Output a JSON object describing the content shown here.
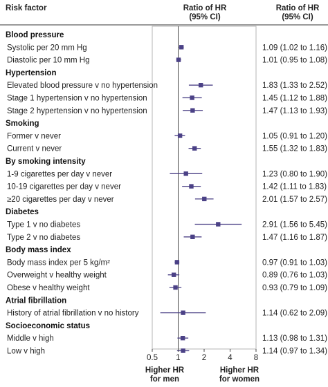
{
  "chart_data": {
    "type": "forest",
    "header": {
      "risk_factor": "Risk factor",
      "plot_title": [
        "Ratio of HR",
        "(95% CI)"
      ],
      "value_title": [
        "Ratio of HR",
        "(95% CI)"
      ]
    },
    "xscale": "log",
    "xlim": [
      0.5,
      8
    ],
    "xticks": [
      "0.5",
      "1",
      "2",
      "4",
      "8"
    ],
    "x_tick_values": [
      0.5,
      1,
      2,
      4,
      8
    ],
    "reference_line": 1,
    "xlabel_left": [
      "Higher HR",
      "for men"
    ],
    "xlabel_right": [
      "Higher HR",
      "for women"
    ],
    "marker_color": "#4b4186",
    "groups": [
      {
        "title": "Blood pressure",
        "items": [
          {
            "label": "Systolic per 20 mm Hg",
            "est": 1.09,
            "lo": 1.02,
            "hi": 1.16,
            "text": "1.09 (1.02 to 1.16)"
          },
          {
            "label": "Diastolic per 10 mm Hg",
            "est": 1.01,
            "lo": 0.95,
            "hi": 1.08,
            "text": "1.01 (0.95 to 1.08)"
          }
        ]
      },
      {
        "title": "Hypertension",
        "items": [
          {
            "label": "Elevated blood pressure v no hypertension",
            "est": 1.83,
            "lo": 1.33,
            "hi": 2.52,
            "text": "1.83 (1.33 to 2.52)"
          },
          {
            "label": "Stage 1 hypertension v no hypertension",
            "est": 1.45,
            "lo": 1.12,
            "hi": 1.88,
            "text": "1.45 (1.12 to 1.88)"
          },
          {
            "label": "Stage 2 hypertension v no hypertension",
            "est": 1.47,
            "lo": 1.13,
            "hi": 1.93,
            "text": "1.47 (1.13 to 1.93)"
          }
        ]
      },
      {
        "title": "Smoking",
        "items": [
          {
            "label": "Former v never",
            "est": 1.05,
            "lo": 0.91,
            "hi": 1.2,
            "text": "1.05 (0.91 to 1.20)"
          },
          {
            "label": "Current v never",
            "est": 1.55,
            "lo": 1.32,
            "hi": 1.83,
            "text": "1.55 (1.32 to 1.83)"
          }
        ]
      },
      {
        "title": "By smoking intensity",
        "items": [
          {
            "label": "1-9 cigarettes per day v never",
            "est": 1.23,
            "lo": 0.8,
            "hi": 1.9,
            "text": "1.23 (0.80 to 1.90)"
          },
          {
            "label": "10-19 cigarettes per day v never",
            "est": 1.42,
            "lo": 1.11,
            "hi": 1.83,
            "text": "1.42 (1.11 to 1.83)"
          },
          {
            "label": "≥20 cigarettes per day v never",
            "est": 2.01,
            "lo": 1.57,
            "hi": 2.57,
            "text": "2.01 (1.57 to 2.57)"
          }
        ]
      },
      {
        "title": "Diabetes",
        "items": [
          {
            "label": "Type 1 v no diabetes",
            "est": 2.91,
            "lo": 1.56,
            "hi": 5.45,
            "text": "2.91 (1.56 to 5.45)"
          },
          {
            "label": "Type 2 v no diabetes",
            "est": 1.47,
            "lo": 1.16,
            "hi": 1.87,
            "text": "1.47 (1.16 to 1.87)"
          }
        ]
      },
      {
        "title": "Body mass index",
        "items": [
          {
            "label": "Body mass index per 5 kg/m²",
            "est": 0.97,
            "lo": 0.91,
            "hi": 1.03,
            "text": "0.97 (0.91 to 1.03)"
          },
          {
            "label": "Overweight v healthy weight",
            "est": 0.89,
            "lo": 0.76,
            "hi": 1.03,
            "text": "0.89 (0.76 to 1.03)"
          },
          {
            "label": "Obese v healthy weight",
            "est": 0.93,
            "lo": 0.79,
            "hi": 1.09,
            "text": "0.93 (0.79 to 1.09)"
          }
        ]
      },
      {
        "title": "Atrial fibrillation",
        "items": [
          {
            "label": "History of atrial fibrillation v no history",
            "est": 1.14,
            "lo": 0.62,
            "hi": 2.09,
            "text": "1.14 (0.62 to 2.09)"
          }
        ]
      },
      {
        "title": "Socioeconomic status",
        "items": [
          {
            "label": "Middle v high",
            "est": 1.13,
            "lo": 0.98,
            "hi": 1.31,
            "text": "1.13 (0.98 to 1.31)"
          },
          {
            "label": "Low v high",
            "est": 1.14,
            "lo": 0.97,
            "hi": 1.34,
            "text": "1.14 (0.97 to 1.34)"
          }
        ]
      }
    ]
  }
}
